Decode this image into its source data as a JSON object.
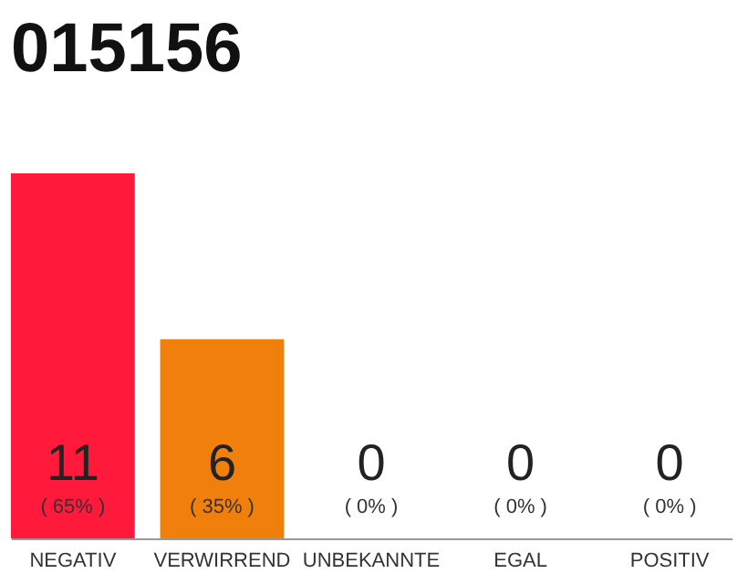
{
  "chart_data": {
    "type": "bar",
    "title": "015156",
    "categories": [
      "NEGATIV",
      "VERWIRREND",
      "UNBEKANNTE",
      "EGAL",
      "POSITIV"
    ],
    "values": [
      11,
      6,
      0,
      0,
      0
    ],
    "colors": [
      "#ff1a3c",
      "#f07f0c",
      "#eeeeee",
      "#eeeeee",
      "#eeeeee"
    ],
    "value_labels": [
      "11",
      "6",
      "0",
      "0",
      "0"
    ],
    "annotations": [
      "( 65% )",
      "( 35% )",
      "( 0% )",
      "( 0% )",
      "( 0% )"
    ]
  }
}
